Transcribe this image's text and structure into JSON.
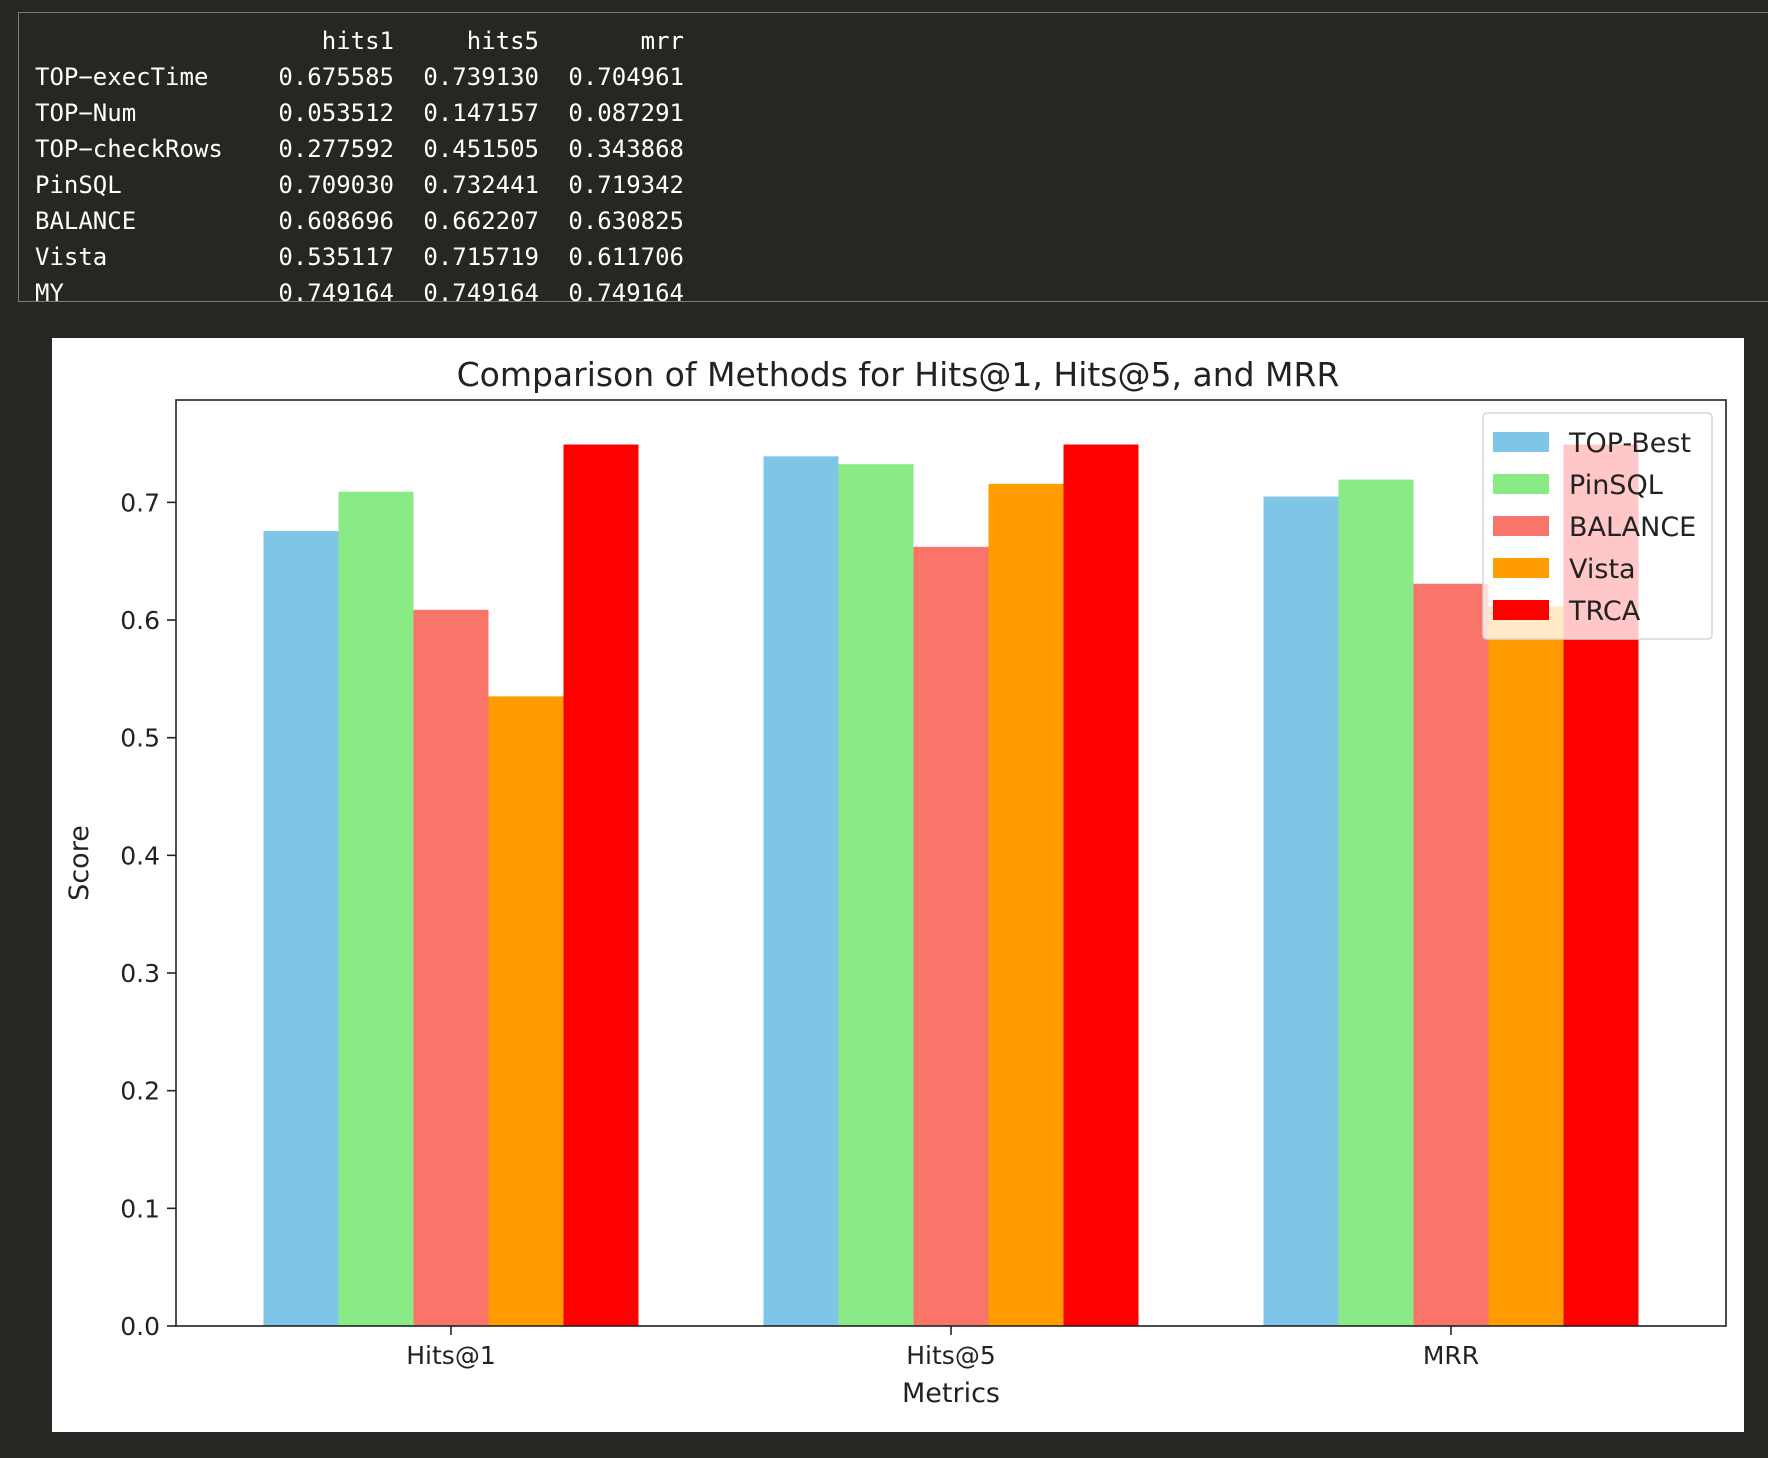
{
  "table": {
    "columns": [
      "hits1",
      "hits5",
      "mrr"
    ],
    "rows": [
      {
        "name": "TOP−execTime",
        "values": [
          "0.675585",
          "0.739130",
          "0.704961"
        ]
      },
      {
        "name": "TOP−Num",
        "values": [
          "0.053512",
          "0.147157",
          "0.087291"
        ]
      },
      {
        "name": "TOP−checkRows",
        "values": [
          "0.277592",
          "0.451505",
          "0.343868"
        ]
      },
      {
        "name": "PinSQL",
        "values": [
          "0.709030",
          "0.732441",
          "0.719342"
        ]
      },
      {
        "name": "BALANCE",
        "values": [
          "0.608696",
          "0.662207",
          "0.630825"
        ]
      },
      {
        "name": "Vista",
        "values": [
          "0.535117",
          "0.715719",
          "0.611706"
        ]
      },
      {
        "name": "MY",
        "values": [
          "0.749164",
          "0.749164",
          "0.749164"
        ]
      }
    ]
  },
  "chart_data": {
    "type": "bar",
    "title": "Comparison of Methods for Hits@1, Hits@5, and MRR",
    "xlabel": "Metrics",
    "ylabel": "Score",
    "categories": [
      "Hits@1",
      "Hits@5",
      "MRR"
    ],
    "ylim": [
      0,
      0.787
    ],
    "yticks": [
      "0.0",
      "0.1",
      "0.2",
      "0.3",
      "0.4",
      "0.5",
      "0.6",
      "0.7"
    ],
    "grid": false,
    "legend_position": "top-right",
    "series": [
      {
        "name": "TOP-Best",
        "color": "#7ec5e8",
        "values": [
          0.675585,
          0.73913,
          0.704961
        ]
      },
      {
        "name": "PinSQL",
        "color": "#89ea86",
        "values": [
          0.70903,
          0.732441,
          0.719342
        ]
      },
      {
        "name": "BALANCE",
        "color": "#fa7569",
        "values": [
          0.608696,
          0.662207,
          0.630825
        ]
      },
      {
        "name": "Vista",
        "color": "#fe9c01",
        "values": [
          0.535117,
          0.715719,
          0.611706
        ]
      },
      {
        "name": "TRCA",
        "color": "#ff0000",
        "values": [
          0.749164,
          0.749164,
          0.749164
        ]
      }
    ]
  }
}
